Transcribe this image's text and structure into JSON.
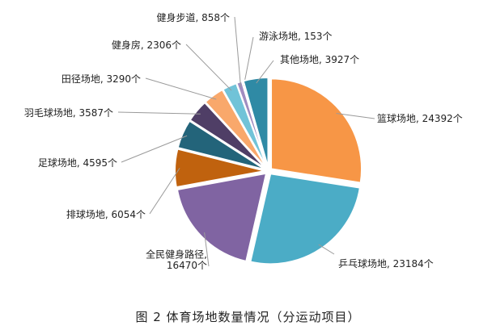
{
  "chart_data": {
    "type": "pie",
    "title": "",
    "caption": "图 2 体育场地数量情况（分运动项目）",
    "slices": [
      {
        "label": "篮球场地, 24392个",
        "name": "篮球场地",
        "value": 24392,
        "color": "#f79646"
      },
      {
        "label": "乒乓球场地, 23184个",
        "name": "乒乓球场地",
        "value": 23184,
        "color": "#4bacc6"
      },
      {
        "label": "全民健身路径,\n16470个",
        "name": "全民健身路径",
        "value": 16470,
        "color": "#8064a2"
      },
      {
        "label": "排球场地, 6054个",
        "name": "排球场地",
        "value": 6054,
        "color": "#c0620e"
      },
      {
        "label": "足球场地, 4595个",
        "name": "足球场地",
        "value": 4595,
        "color": "#23647a"
      },
      {
        "label": "羽毛球场地, 3587个",
        "name": "羽毛球场地",
        "value": 3587,
        "color": "#4f3e66"
      },
      {
        "label": "田径场地, 3290个",
        "name": "田径场地",
        "value": 3290,
        "color": "#f9a86b"
      },
      {
        "label": "健身房, 2306个",
        "name": "健身房",
        "value": 2306,
        "color": "#71c3d8"
      },
      {
        "label": "健身步道, 858个",
        "name": "健身步道",
        "value": 858,
        "color": "#a08cc0"
      },
      {
        "label": "游泳场地, 153个",
        "name": "游泳场地",
        "value": 153,
        "color": "#e47a1c"
      },
      {
        "label": "其他场地, 3927个",
        "name": "其他场地",
        "value": 3927,
        "color": "#2f8aa5"
      }
    ]
  }
}
